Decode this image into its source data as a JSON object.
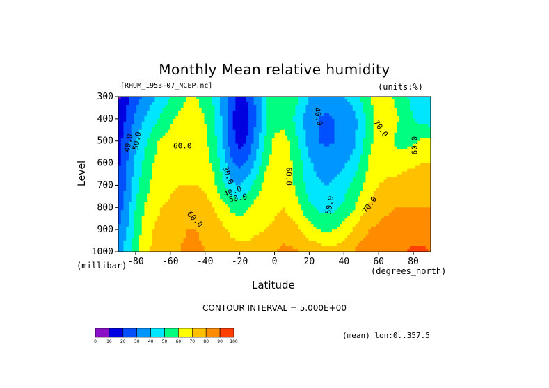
{
  "chart_data": {
    "type": "heatmap",
    "title": "Monthly Mean relative humidity",
    "dataset": "[RHUM_1953-07_NCEP.nc]",
    "units": "(units:%)",
    "xlabel": "Latitude",
    "x_units": "(degrees_north)",
    "ylabel": "Level",
    "y_units": "(millibar)",
    "xlim": [
      -90,
      90
    ],
    "ylim": [
      1000,
      300
    ],
    "x_ticks": [
      "-80",
      "-60",
      "-40",
      "-20",
      "0",
      "20",
      "40",
      "60",
      "80"
    ],
    "y_ticks": [
      "300",
      "400",
      "500",
      "600",
      "700",
      "800",
      "900",
      "1000"
    ],
    "x": [
      -90,
      -85,
      -80,
      -75,
      -70,
      -65,
      -60,
      -55,
      -50,
      -45,
      -40,
      -35,
      -30,
      -25,
      -20,
      -15,
      -10,
      -5,
      0,
      5,
      10,
      15,
      20,
      25,
      30,
      35,
      40,
      45,
      50,
      55,
      60,
      65,
      70,
      75,
      80,
      85,
      90
    ],
    "y": [
      300,
      400,
      500,
      600,
      700,
      800,
      900,
      1000
    ],
    "z": [
      [
        8,
        18,
        26,
        32,
        38,
        44,
        50,
        56,
        60,
        60,
        56,
        48,
        38,
        26,
        16,
        22,
        34,
        50,
        58,
        60,
        56,
        48,
        40,
        36,
        36,
        38,
        40,
        44,
        52,
        60,
        64,
        62,
        58,
        52,
        46,
        42,
        40
      ],
      [
        12,
        22,
        32,
        40,
        46,
        52,
        58,
        62,
        64,
        64,
        60,
        52,
        38,
        22,
        12,
        18,
        32,
        48,
        56,
        56,
        52,
        42,
        34,
        30,
        28,
        30,
        32,
        36,
        44,
        56,
        64,
        66,
        62,
        56,
        50,
        46,
        44
      ],
      [
        16,
        26,
        38,
        48,
        56,
        62,
        64,
        66,
        66,
        66,
        62,
        54,
        40,
        24,
        16,
        22,
        36,
        52,
        62,
        64,
        58,
        46,
        36,
        30,
        28,
        30,
        32,
        36,
        46,
        58,
        64,
        64,
        58,
        56,
        58,
        62,
        62
      ],
      [
        18,
        30,
        42,
        52,
        60,
        64,
        66,
        68,
        68,
        68,
        64,
        58,
        46,
        32,
        26,
        32,
        44,
        58,
        64,
        64,
        60,
        52,
        42,
        36,
        34,
        36,
        38,
        44,
        52,
        62,
        66,
        66,
        64,
        66,
        68,
        70,
        70
      ],
      [
        20,
        32,
        46,
        56,
        62,
        66,
        68,
        70,
        70,
        70,
        68,
        62,
        52,
        42,
        40,
        46,
        56,
        64,
        66,
        66,
        62,
        54,
        46,
        42,
        40,
        42,
        46,
        52,
        58,
        66,
        70,
        72,
        74,
        76,
        78,
        78,
        78
      ],
      [
        24,
        36,
        50,
        60,
        66,
        70,
        72,
        74,
        76,
        76,
        74,
        70,
        64,
        58,
        56,
        60,
        64,
        66,
        68,
        70,
        66,
        60,
        52,
        48,
        46,
        48,
        52,
        58,
        66,
        72,
        76,
        78,
        80,
        80,
        80,
        80,
        80
      ],
      [
        30,
        40,
        54,
        64,
        70,
        74,
        76,
        78,
        80,
        80,
        78,
        76,
        72,
        68,
        66,
        66,
        68,
        70,
        72,
        76,
        74,
        70,
        64,
        60,
        58,
        60,
        64,
        70,
        76,
        80,
        82,
        84,
        84,
        84,
        84,
        84,
        84
      ],
      [
        36,
        44,
        56,
        66,
        72,
        76,
        78,
        80,
        82,
        82,
        80,
        78,
        76,
        74,
        74,
        74,
        76,
        78,
        80,
        82,
        82,
        80,
        78,
        76,
        74,
        74,
        76,
        80,
        84,
        86,
        88,
        88,
        88,
        90,
        92,
        92,
        90
      ]
    ],
    "contour_labels": [
      "40.0",
      "50.0",
      "60.0",
      "30.0",
      "40.0",
      "50.0",
      "60.0",
      "40.0",
      "50.0",
      "60.0",
      "70.0",
      "70.0",
      "60.0"
    ],
    "levels": [
      0,
      10,
      20,
      30,
      40,
      50,
      60,
      70,
      80,
      90,
      100
    ],
    "colors": [
      "#8a10c8",
      "#0000e0",
      "#0050ff",
      "#0096ff",
      "#00e6ff",
      "#00ff80",
      "#ffff00",
      "#ffc000",
      "#ff8c00",
      "#ff4000"
    ],
    "colorbar_ticks": [
      "0",
      "10",
      "20",
      "30",
      "40",
      "50",
      "60",
      "70",
      "80",
      "90",
      "100"
    ],
    "contour_interval": "CONTOUR INTERVAL = 5.000E+00",
    "mean_label": "(mean) lon:0..357.5"
  }
}
